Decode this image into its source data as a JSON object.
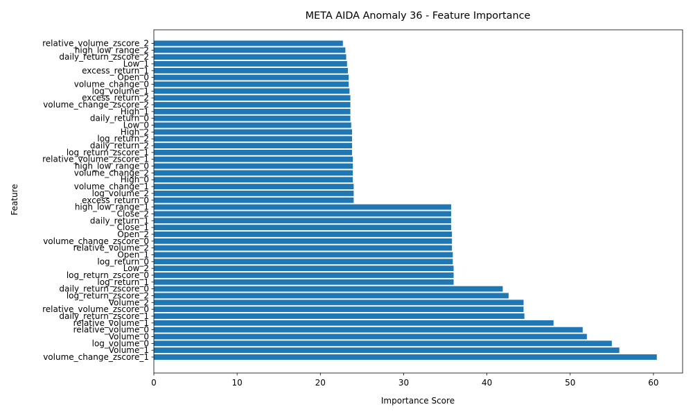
{
  "chart_data": {
    "type": "bar",
    "orientation": "horizontal",
    "title": "META AIDA Anomaly 36 - Feature Importance",
    "xlabel": "Importance Score",
    "ylabel": "Feature",
    "xlim": [
      0,
      63.5
    ],
    "xticks": [
      0,
      10,
      20,
      30,
      40,
      50,
      60
    ],
    "xtick_labels": [
      "0",
      "10",
      "20",
      "30",
      "40",
      "50",
      "60"
    ],
    "grid": false,
    "bar_color": "#1f77b4",
    "categories": [
      "volume_change_zscore_1",
      "Volume_1",
      "log_volume_0",
      "Volume_0",
      "relative_volume_0",
      "relative_volume_1",
      "daily_return_zscore_1",
      "relative_volume_zscore_0",
      "Volume_2",
      "log_return_zscore_2",
      "daily_return_zscore_0",
      "log_return_1",
      "log_return_zscore_0",
      "Low_2",
      "log_return_0",
      "Open_1",
      "relative_volume_2",
      "volume_change_zscore_0",
      "Open_2",
      "Close_1",
      "daily_return_1",
      "Close_2",
      "high_low_range_1",
      "excess_return_0",
      "log_volume_2",
      "volume_change_1",
      "High_0",
      "volume_change_2",
      "high_low_range_0",
      "relative_volume_zscore_1",
      "log_return_zscore_1",
      "daily_return_2",
      "log_return_2",
      "High_2",
      "Low_0",
      "daily_return_0",
      "High_1",
      "volume_change_zscore_2",
      "excess_return_2",
      "log_volume_1",
      "volume_change_0",
      "Open_0",
      "excess_return_1",
      "Low_1",
      "daily_return_zscore_2",
      "high_low_range_2",
      "relative_volume_zscore_2"
    ],
    "values": [
      60.4,
      55.9,
      55.0,
      52.0,
      51.5,
      48.0,
      44.5,
      44.4,
      44.4,
      42.6,
      41.9,
      36.0,
      36.0,
      36.0,
      35.9,
      35.9,
      35.8,
      35.8,
      35.8,
      35.7,
      35.7,
      35.7,
      35.7,
      24.0,
      24.0,
      24.0,
      23.9,
      23.9,
      23.9,
      23.9,
      23.8,
      23.8,
      23.8,
      23.8,
      23.7,
      23.6,
      23.6,
      23.6,
      23.6,
      23.5,
      23.4,
      23.4,
      23.3,
      23.2,
      23.1,
      23.0,
      22.7
    ]
  }
}
